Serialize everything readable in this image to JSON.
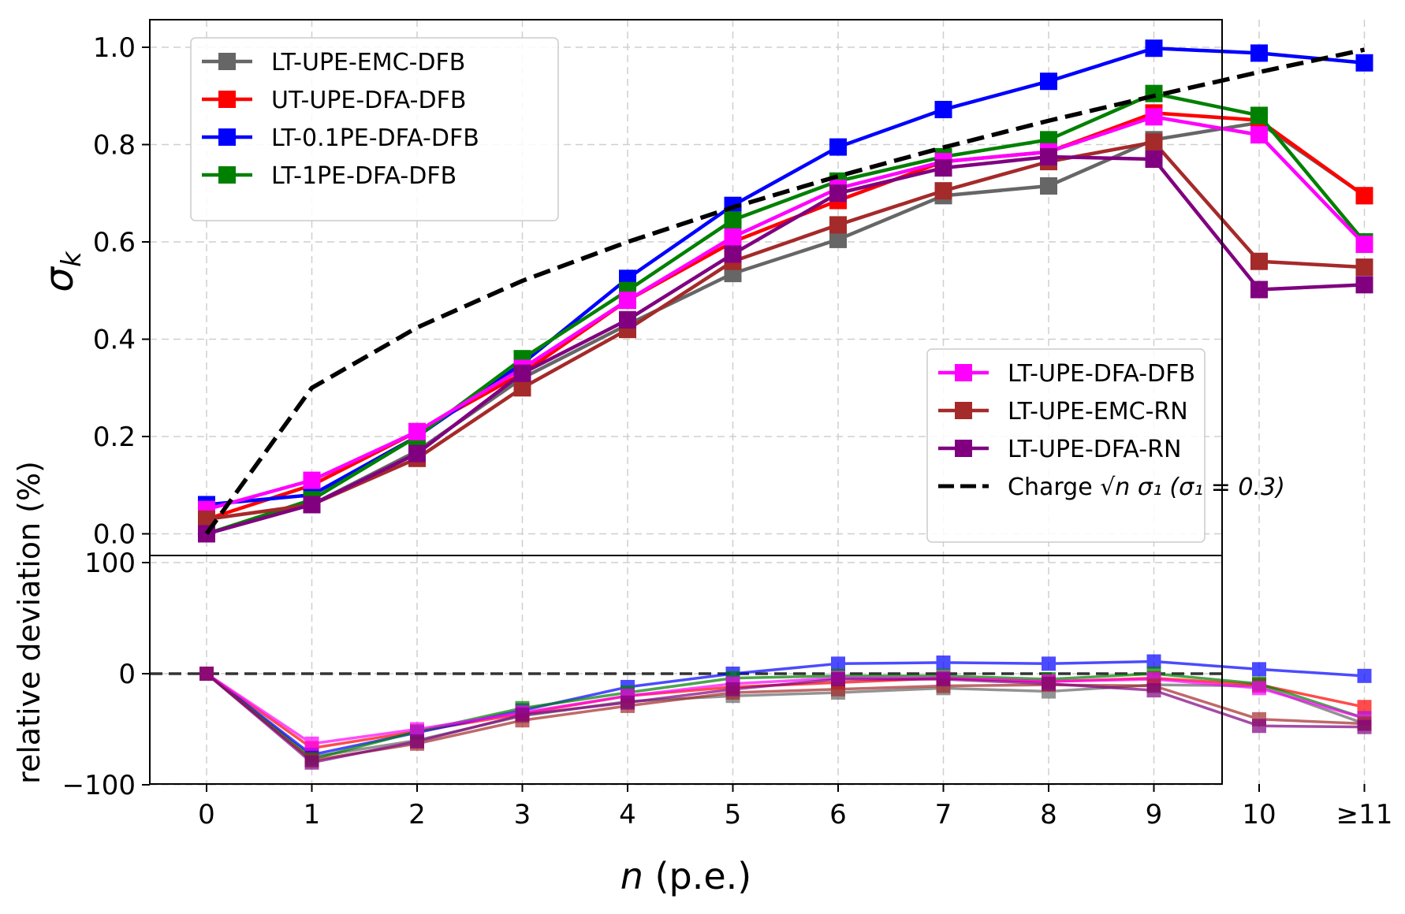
{
  "chart_data": [
    {
      "type": "line",
      "panel": "top",
      "ylabel_symbol": "σ",
      "ylabel_sub": "k",
      "ylim": [
        -0.03,
        1.05
      ],
      "yticks": [
        "0.0",
        "0.2",
        "0.4",
        "0.6",
        "0.8",
        "1.0"
      ],
      "ytick_values": [
        0.0,
        0.2,
        0.4,
        0.6,
        0.8,
        1.0
      ],
      "grid": true,
      "x": [
        0,
        1,
        2,
        3,
        4,
        5,
        6,
        7,
        8,
        9,
        10,
        11
      ],
      "series": [
        {
          "name": "LT-UPE-EMC-DFB",
          "color": "#666666",
          "marker": "square",
          "legend": "upper-left",
          "values": [
            0.0,
            0.06,
            0.17,
            0.32,
            0.43,
            0.535,
            0.605,
            0.695,
            0.715,
            0.81,
            0.845,
            0.695
          ]
        },
        {
          "name": "UT-UPE-DFA-DFB",
          "color": "#ff0000",
          "marker": "square",
          "legend": "upper-left",
          "values": [
            0.03,
            0.1,
            0.21,
            0.33,
            0.48,
            0.6,
            0.685,
            0.765,
            0.785,
            0.865,
            0.85,
            0.695
          ]
        },
        {
          "name": "LT-0.1PE-DFA-DFB",
          "color": "#0000ff",
          "marker": "square",
          "legend": "upper-left",
          "values": [
            0.06,
            0.08,
            0.2,
            0.35,
            0.525,
            0.675,
            0.795,
            0.872,
            0.93,
            0.998,
            0.988,
            0.968
          ]
        },
        {
          "name": "LT-1PE-DFA-DFB",
          "color": "#008000",
          "marker": "square",
          "legend": "upper-left",
          "values": [
            0.0,
            0.07,
            0.2,
            0.36,
            0.5,
            0.645,
            0.725,
            0.775,
            0.81,
            0.905,
            0.86,
            0.6
          ]
        },
        {
          "name": "LT-UPE-DFA-DFB",
          "color": "#ff00ff",
          "marker": "square",
          "legend": "lower-right",
          "values": [
            0.05,
            0.11,
            0.21,
            0.34,
            0.48,
            0.61,
            0.71,
            0.765,
            0.785,
            0.857,
            0.82,
            0.595
          ]
        },
        {
          "name": "LT-UPE-EMC-RN",
          "color": "#a52a2a",
          "marker": "square",
          "legend": "lower-right",
          "values": [
            0.03,
            0.06,
            0.155,
            0.3,
            0.42,
            0.56,
            0.635,
            0.705,
            0.765,
            0.805,
            0.56,
            0.548
          ]
        },
        {
          "name": "LT-UPE-DFA-RN",
          "color": "#800080",
          "marker": "square",
          "legend": "lower-right",
          "values": [
            0.0,
            0.06,
            0.165,
            0.33,
            0.44,
            0.575,
            0.7,
            0.752,
            0.775,
            0.77,
            0.502,
            0.512
          ]
        }
      ],
      "reference": {
        "label_prefix": "Charge ",
        "label_formula": "√n σ₁ (σ₁ = 0.3)",
        "color": "#000000",
        "style": "dashed",
        "legend": "lower-right",
        "values": [
          0.0,
          0.3,
          0.424,
          0.52,
          0.6,
          0.671,
          0.735,
          0.794,
          0.849,
          0.9,
          0.949,
          0.995
        ]
      }
    },
    {
      "type": "line",
      "panel": "bottom",
      "ylabel": "relative deviation (%)",
      "xlabel_var": "n",
      "xlabel_unit": " (p.e.)",
      "ylim": [
        -100,
        100
      ],
      "yticks": [
        "−100",
        "0",
        "100"
      ],
      "ytick_values": [
        -100,
        0,
        100
      ],
      "xticks": [
        "0",
        "1",
        "2",
        "3",
        "4",
        "5",
        "6",
        "7",
        "8",
        "9",
        "10",
        "≥11"
      ],
      "grid": true,
      "zero_line": {
        "value": 0,
        "style": "dashed",
        "color": "#333333"
      },
      "series": [
        {
          "name": "LT-UPE-EMC-DFB",
          "color": "#666666",
          "values": [
            0,
            -75,
            -60,
            -38,
            -25,
            -20,
            -17,
            -13,
            -16,
            -10,
            -11,
            -45
          ]
        },
        {
          "name": "UT-UPE-DFA-DFB",
          "color": "#ff0000",
          "values": [
            0,
            -67,
            -52,
            -36,
            -20,
            -12,
            -8,
            -4,
            -7,
            -4,
            -10,
            -30
          ]
        },
        {
          "name": "LT-0.1PE-DFA-DFB",
          "color": "#0000ff",
          "values": [
            0,
            -73,
            -53,
            -33,
            -12,
            0,
            9,
            10,
            9,
            11,
            4,
            -2
          ]
        },
        {
          "name": "LT-1PE-DFA-DFB",
          "color": "#008000",
          "values": [
            0,
            -77,
            -52,
            -31,
            -17,
            -4,
            -2,
            -2,
            -5,
            0,
            -9,
            -40
          ]
        },
        {
          "name": "LT-UPE-DFA-DFB",
          "color": "#ff00ff",
          "values": [
            0,
            -63,
            -50,
            -35,
            -20,
            -9,
            -4,
            -4,
            -7,
            -5,
            -13,
            -40
          ]
        },
        {
          "name": "LT-UPE-EMC-RN",
          "color": "#a52a2a",
          "values": [
            0,
            -78,
            -63,
            -42,
            -29,
            -17,
            -14,
            -11,
            -10,
            -11,
            -41,
            -45
          ]
        },
        {
          "name": "LT-UPE-DFA-RN",
          "color": "#800080",
          "values": [
            0,
            -80,
            -61,
            -37,
            -26,
            -14,
            -5,
            -5,
            -9,
            -15,
            -47,
            -48
          ]
        }
      ]
    }
  ]
}
